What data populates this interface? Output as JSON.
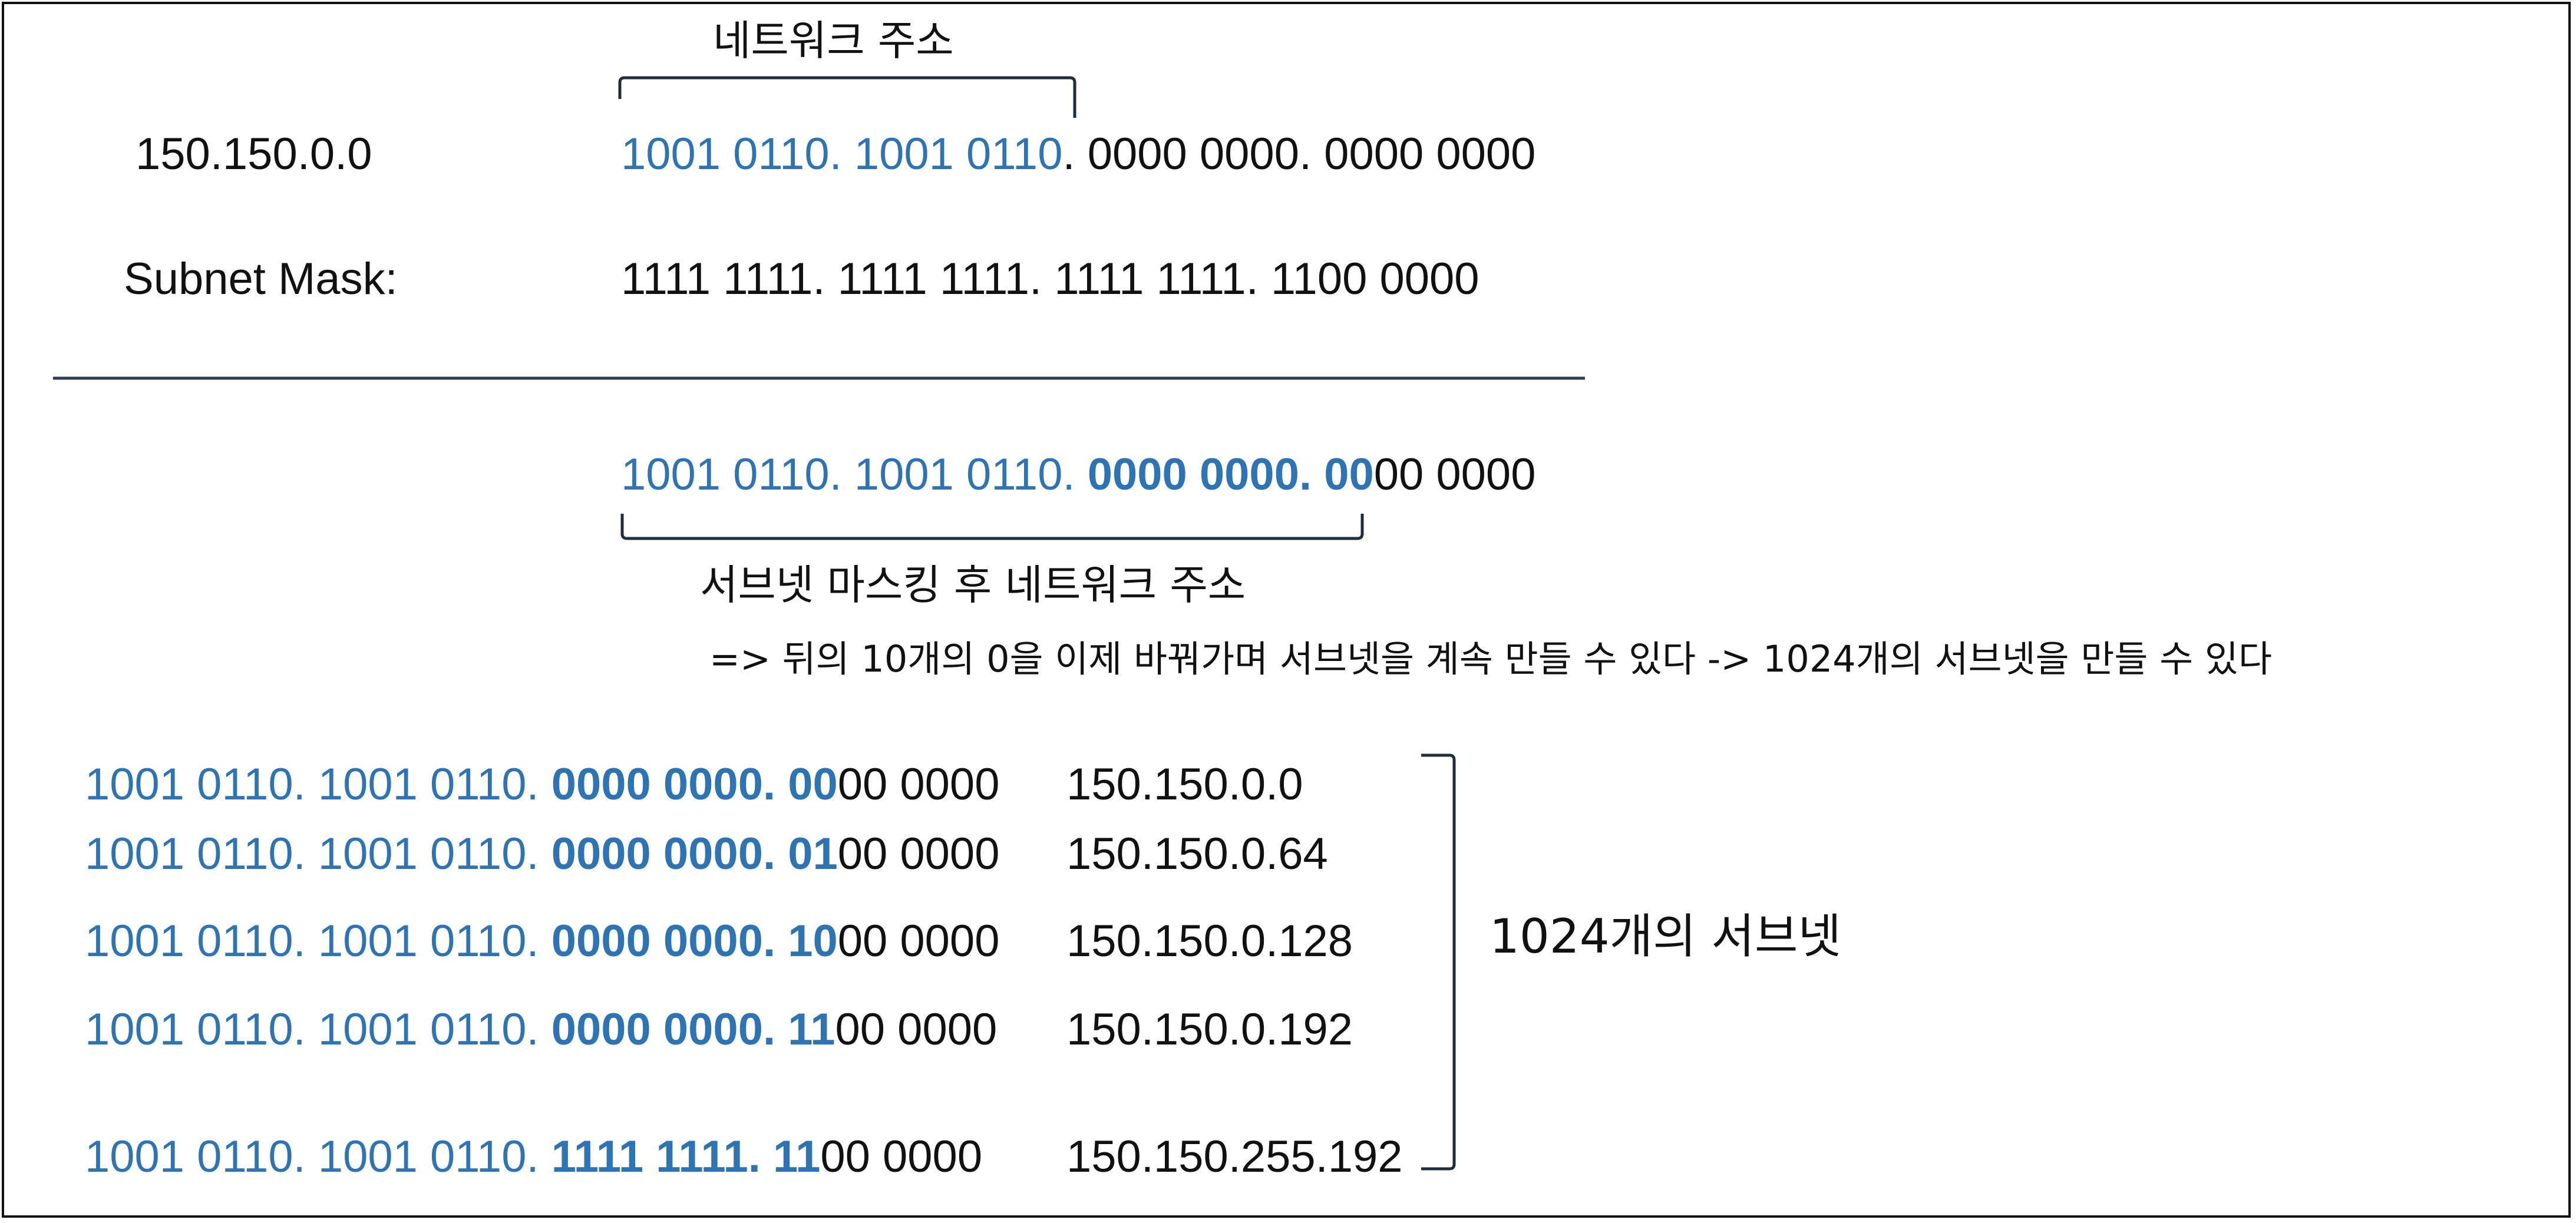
{
  "top_network_label": "네트워크 주소",
  "ip_address": "150.150.0.0",
  "ip_binary": {
    "net_part": "1001 0110. 1001 0110",
    "host_part": ". 0000 0000. 0000 0000"
  },
  "subnet_mask_label": "Subnet Mask:",
  "subnet_mask_binary": "1111 1111. 1111 1111. 1111 1111. 1100 0000",
  "masked_result": {
    "net_part": "1001 0110. 1001 0110. ",
    "subnet_bits": "0000 0000. 00",
    "host_bits": "00 0000"
  },
  "masked_label": "서브넷 마스킹 후 네트워크 주소",
  "explanation": "=> 뒤의 10개의 0을 이제 바꿔가며 서브넷을 계속 만들 수 있다 -> 1024개의 서브넷을 만들 수 있다",
  "subnets": [
    {
      "net_part": "1001 0110. 1001 0110. ",
      "subnet_bits": "0000 0000. 00",
      "host_bits": "00 0000",
      "decimal": "150.150.0.0"
    },
    {
      "net_part": "1001 0110. 1001 0110. ",
      "subnet_bits": "0000 0000. 01",
      "host_bits": "00 0000",
      "decimal": "150.150.0.64"
    },
    {
      "net_part": "1001 0110. 1001 0110. ",
      "subnet_bits": "0000 0000. 10",
      "host_bits": "00 0000",
      "decimal": "150.150.0.128"
    },
    {
      "net_part": "1001 0110. 1001 0110. ",
      "subnet_bits": "0000 0000. 11",
      "host_bits": "00 0000",
      "decimal": "150.150.0.192"
    },
    {
      "net_part": "1001 0110. 1001 0110. ",
      "subnet_bits": "1111 1111. 11",
      "host_bits": "00 0000",
      "decimal": "150.150.255.192"
    }
  ],
  "subnet_count_label": "1024개의 서브넷",
  "colors": {
    "network_bits": "#2e74b5",
    "text": "#111111",
    "divider": "#2f3b4f"
  }
}
